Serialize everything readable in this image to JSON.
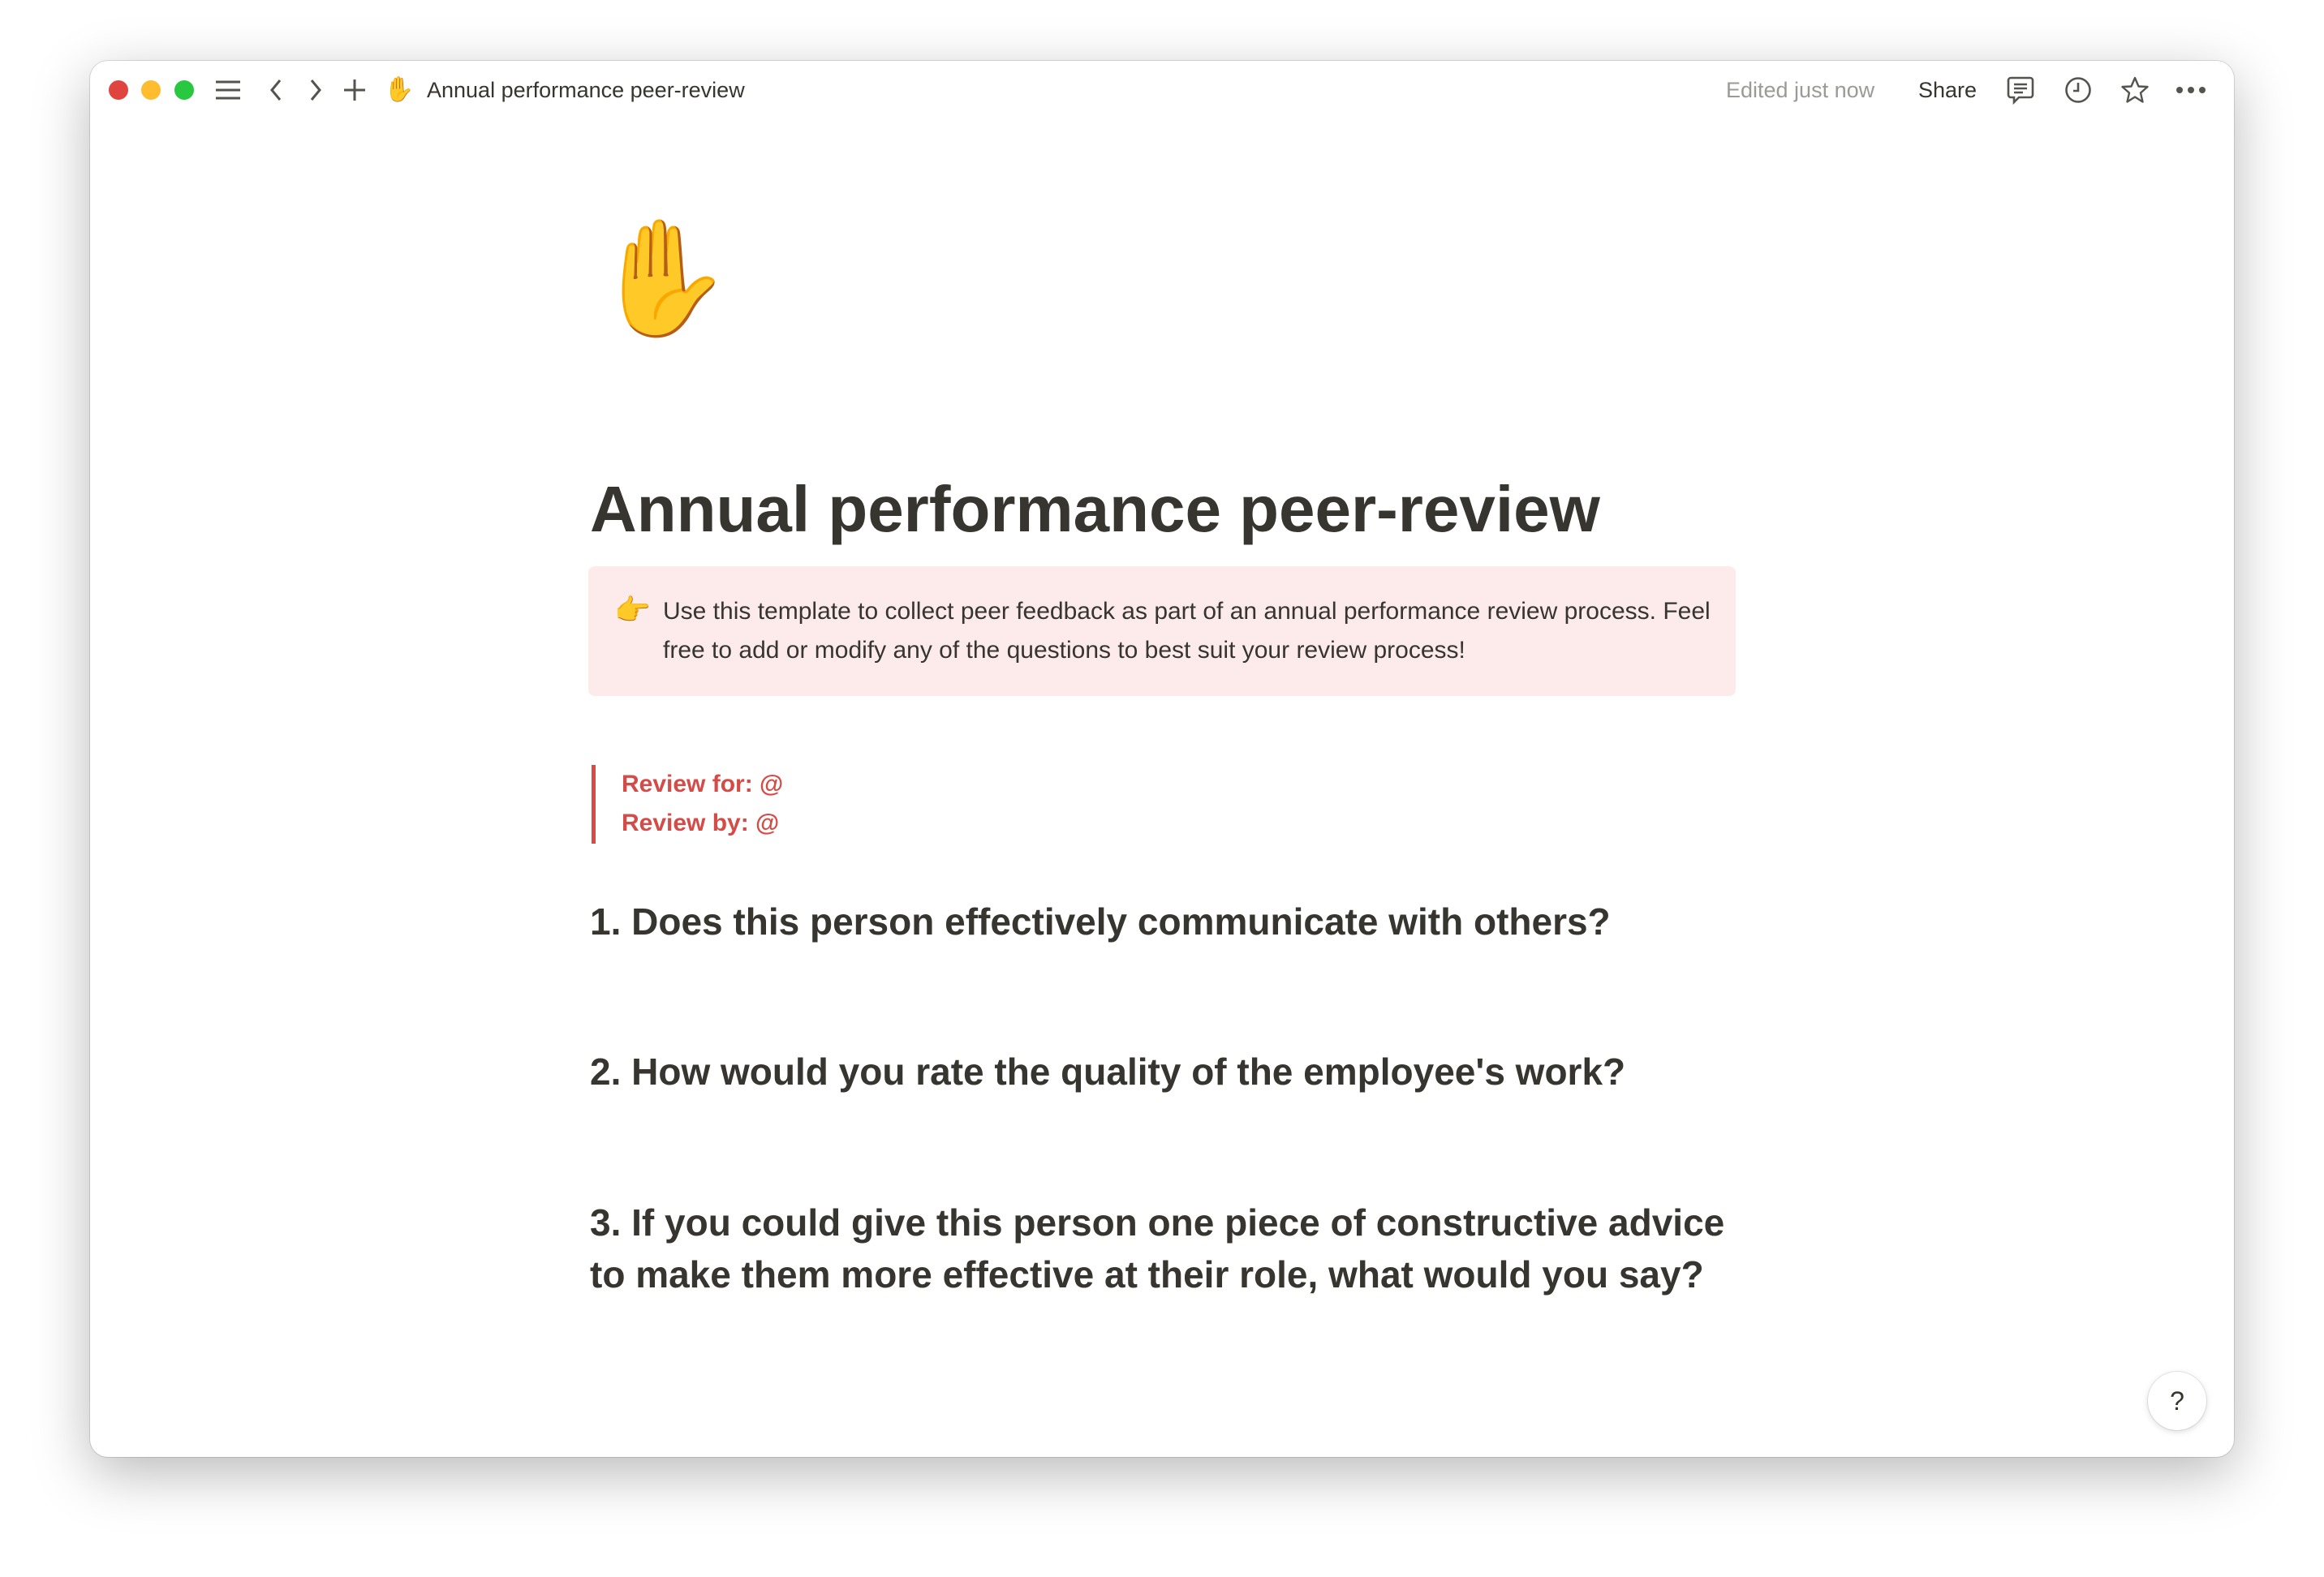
{
  "window": {
    "traffic_lights": {
      "close": "#e0443e",
      "minimize": "#febc2e",
      "zoom": "#28c840"
    },
    "toolbar": {
      "page_icon": "✋",
      "page_title": "Annual performance peer-review",
      "edited_status": "Edited just now",
      "share_label": "Share",
      "icons": [
        "menu-icon",
        "back-icon",
        "forward-icon",
        "plus-icon",
        "comment-icon",
        "clock-icon",
        "star-icon",
        "more-icon"
      ]
    }
  },
  "page": {
    "icon": "✋",
    "title": "Annual performance peer-review",
    "callout": {
      "emoji": "👉",
      "text": "Use this template to collect peer feedback as part of an annual performance review process. Feel free to add or modify any of the questions to best suit your review process!",
      "background": "#fdebec"
    },
    "quote": {
      "lines": [
        "Review for: @",
        "Review by: @"
      ],
      "color": "#d44c47"
    },
    "questions": [
      "1. Does this person effectively communicate with others?",
      "2. How would you rate the quality of the employee's work?",
      "3. If you could give this person one piece of constructive advice to make them more effective at their role, what would you say?"
    ]
  },
  "help_button": {
    "label": "?"
  }
}
